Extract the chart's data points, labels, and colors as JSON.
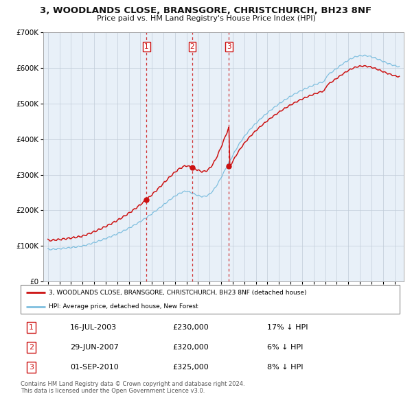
{
  "title": "3, WOODLANDS CLOSE, BRANSGORE, CHRISTCHURCH, BH23 8NF",
  "subtitle": "Price paid vs. HM Land Registry's House Price Index (HPI)",
  "ylim": [
    0,
    700000
  ],
  "yticks": [
    0,
    100000,
    200000,
    300000,
    400000,
    500000,
    600000,
    700000
  ],
  "ytick_labels": [
    "£0",
    "£100K",
    "£200K",
    "£300K",
    "£400K",
    "£500K",
    "£600K",
    "£700K"
  ],
  "hpi_color": "#7fbfdf",
  "price_color": "#cc1111",
  "vline_color": "#cc1111",
  "background_color": "#ffffff",
  "chart_bg": "#e8f0f8",
  "grid_color": "#c0ccd8",
  "sale_years": [
    2003.54,
    2007.49,
    2010.67
  ],
  "sale_prices": [
    230000,
    320000,
    325000
  ],
  "legend_property_label": "3, WOODLANDS CLOSE, BRANSGORE, CHRISTCHURCH, BH23 8NF (detached house)",
  "legend_hpi_label": "HPI: Average price, detached house, New Forest",
  "footnote": "Contains HM Land Registry data © Crown copyright and database right 2024.\nThis data is licensed under the Open Government Licence v3.0.",
  "table_rows": [
    [
      "1",
      "16-JUL-2003",
      "£230,000",
      "17% ↓ HPI"
    ],
    [
      "2",
      "29-JUN-2007",
      "£320,000",
      "6% ↓ HPI"
    ],
    [
      "3",
      "01-SEP-2010",
      "£325,000",
      "8% ↓ HPI"
    ]
  ]
}
